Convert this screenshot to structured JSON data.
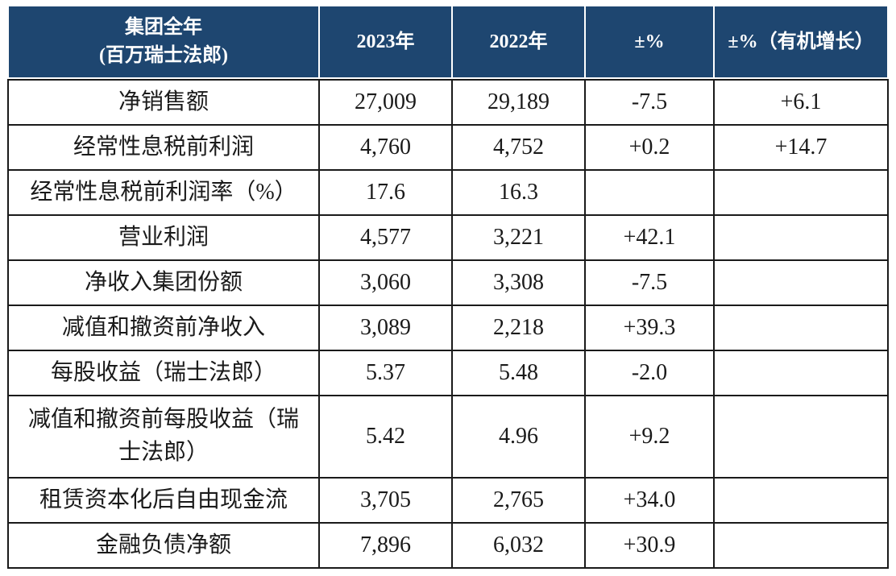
{
  "table": {
    "title_semantic": "group-full-year-financials",
    "header": {
      "col1_line1": "集团全年",
      "col1_line2": "(百万瑞士法郎)",
      "col2": "2023年",
      "col3": "2022年",
      "col4": "±%",
      "col5": "±%（有机增长）"
    },
    "rows": [
      {
        "label": "净销售额",
        "y2023": "27,009",
        "y2022": "29,189",
        "pct": "-7.5",
        "organic": "+6.1"
      },
      {
        "label": "经常性息税前利润",
        "y2023": "4,760",
        "y2022": "4,752",
        "pct": "+0.2",
        "organic": "+14.7"
      },
      {
        "label": "经常性息税前利润率（%）",
        "y2023": "17.6",
        "y2022": "16.3",
        "pct": "",
        "organic": ""
      },
      {
        "label": "营业利润",
        "y2023": "4,577",
        "y2022": "3,221",
        "pct": "+42.1",
        "organic": ""
      },
      {
        "label": "净收入集团份额",
        "y2023": "3,060",
        "y2022": "3,308",
        "pct": "-7.5",
        "organic": ""
      },
      {
        "label": "减值和撤资前净收入",
        "y2023": "3,089",
        "y2022": "2,218",
        "pct": "+39.3",
        "organic": ""
      },
      {
        "label": "每股收益（瑞士法郎）",
        "y2023": "5.37",
        "y2022": "5.48",
        "pct": "-2.0",
        "organic": ""
      },
      {
        "label": "减值和撤资前每股收益（瑞士法郎）",
        "y2023": "5.42",
        "y2022": "4.96",
        "pct": "+9.2",
        "organic": ""
      },
      {
        "label": "租赁资本化后自由现金流",
        "y2023": "3,705",
        "y2022": "2,765",
        "pct": "+34.0",
        "organic": ""
      },
      {
        "label": "金融负债净额",
        "y2023": "7,896",
        "y2022": "6,032",
        "pct": "+30.9",
        "organic": ""
      }
    ],
    "colors": {
      "header_bg": "#1e4670",
      "header_text": "#ffffff",
      "border": "#1a1a1a",
      "body_text": "#1a1a1a"
    }
  }
}
